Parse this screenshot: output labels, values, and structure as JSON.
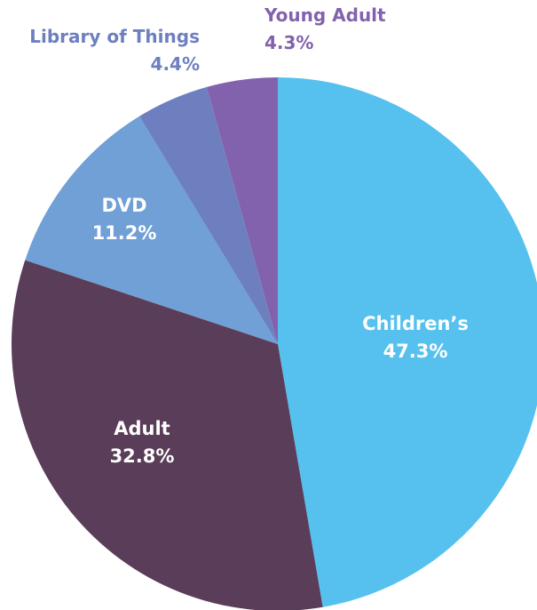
{
  "chart_data": {
    "type": "pie",
    "title": "",
    "slices": [
      {
        "label": "Children’s",
        "value": 47.3,
        "value_label": "47.3%",
        "color": "#56C1EE",
        "label_color": "#ffffff",
        "label_position": "inside"
      },
      {
        "label": "Adult",
        "value": 32.8,
        "value_label": "32.8%",
        "color": "#5A3D58",
        "label_color": "#ffffff",
        "label_position": "inside"
      },
      {
        "label": "DVD",
        "value": 11.2,
        "value_label": "11.2%",
        "color": "#70A0D6",
        "label_color": "#ffffff",
        "label_position": "inside"
      },
      {
        "label": "Library of Things",
        "value": 4.4,
        "value_label": "4.4%",
        "color": "#6E7FC0",
        "label_color": "#6E7FC0",
        "label_position": "outside"
      },
      {
        "label": "Young Adult",
        "value": 4.3,
        "value_label": "4.3%",
        "color": "#8262AC",
        "label_color": "#8262AC",
        "label_position": "outside"
      }
    ]
  }
}
